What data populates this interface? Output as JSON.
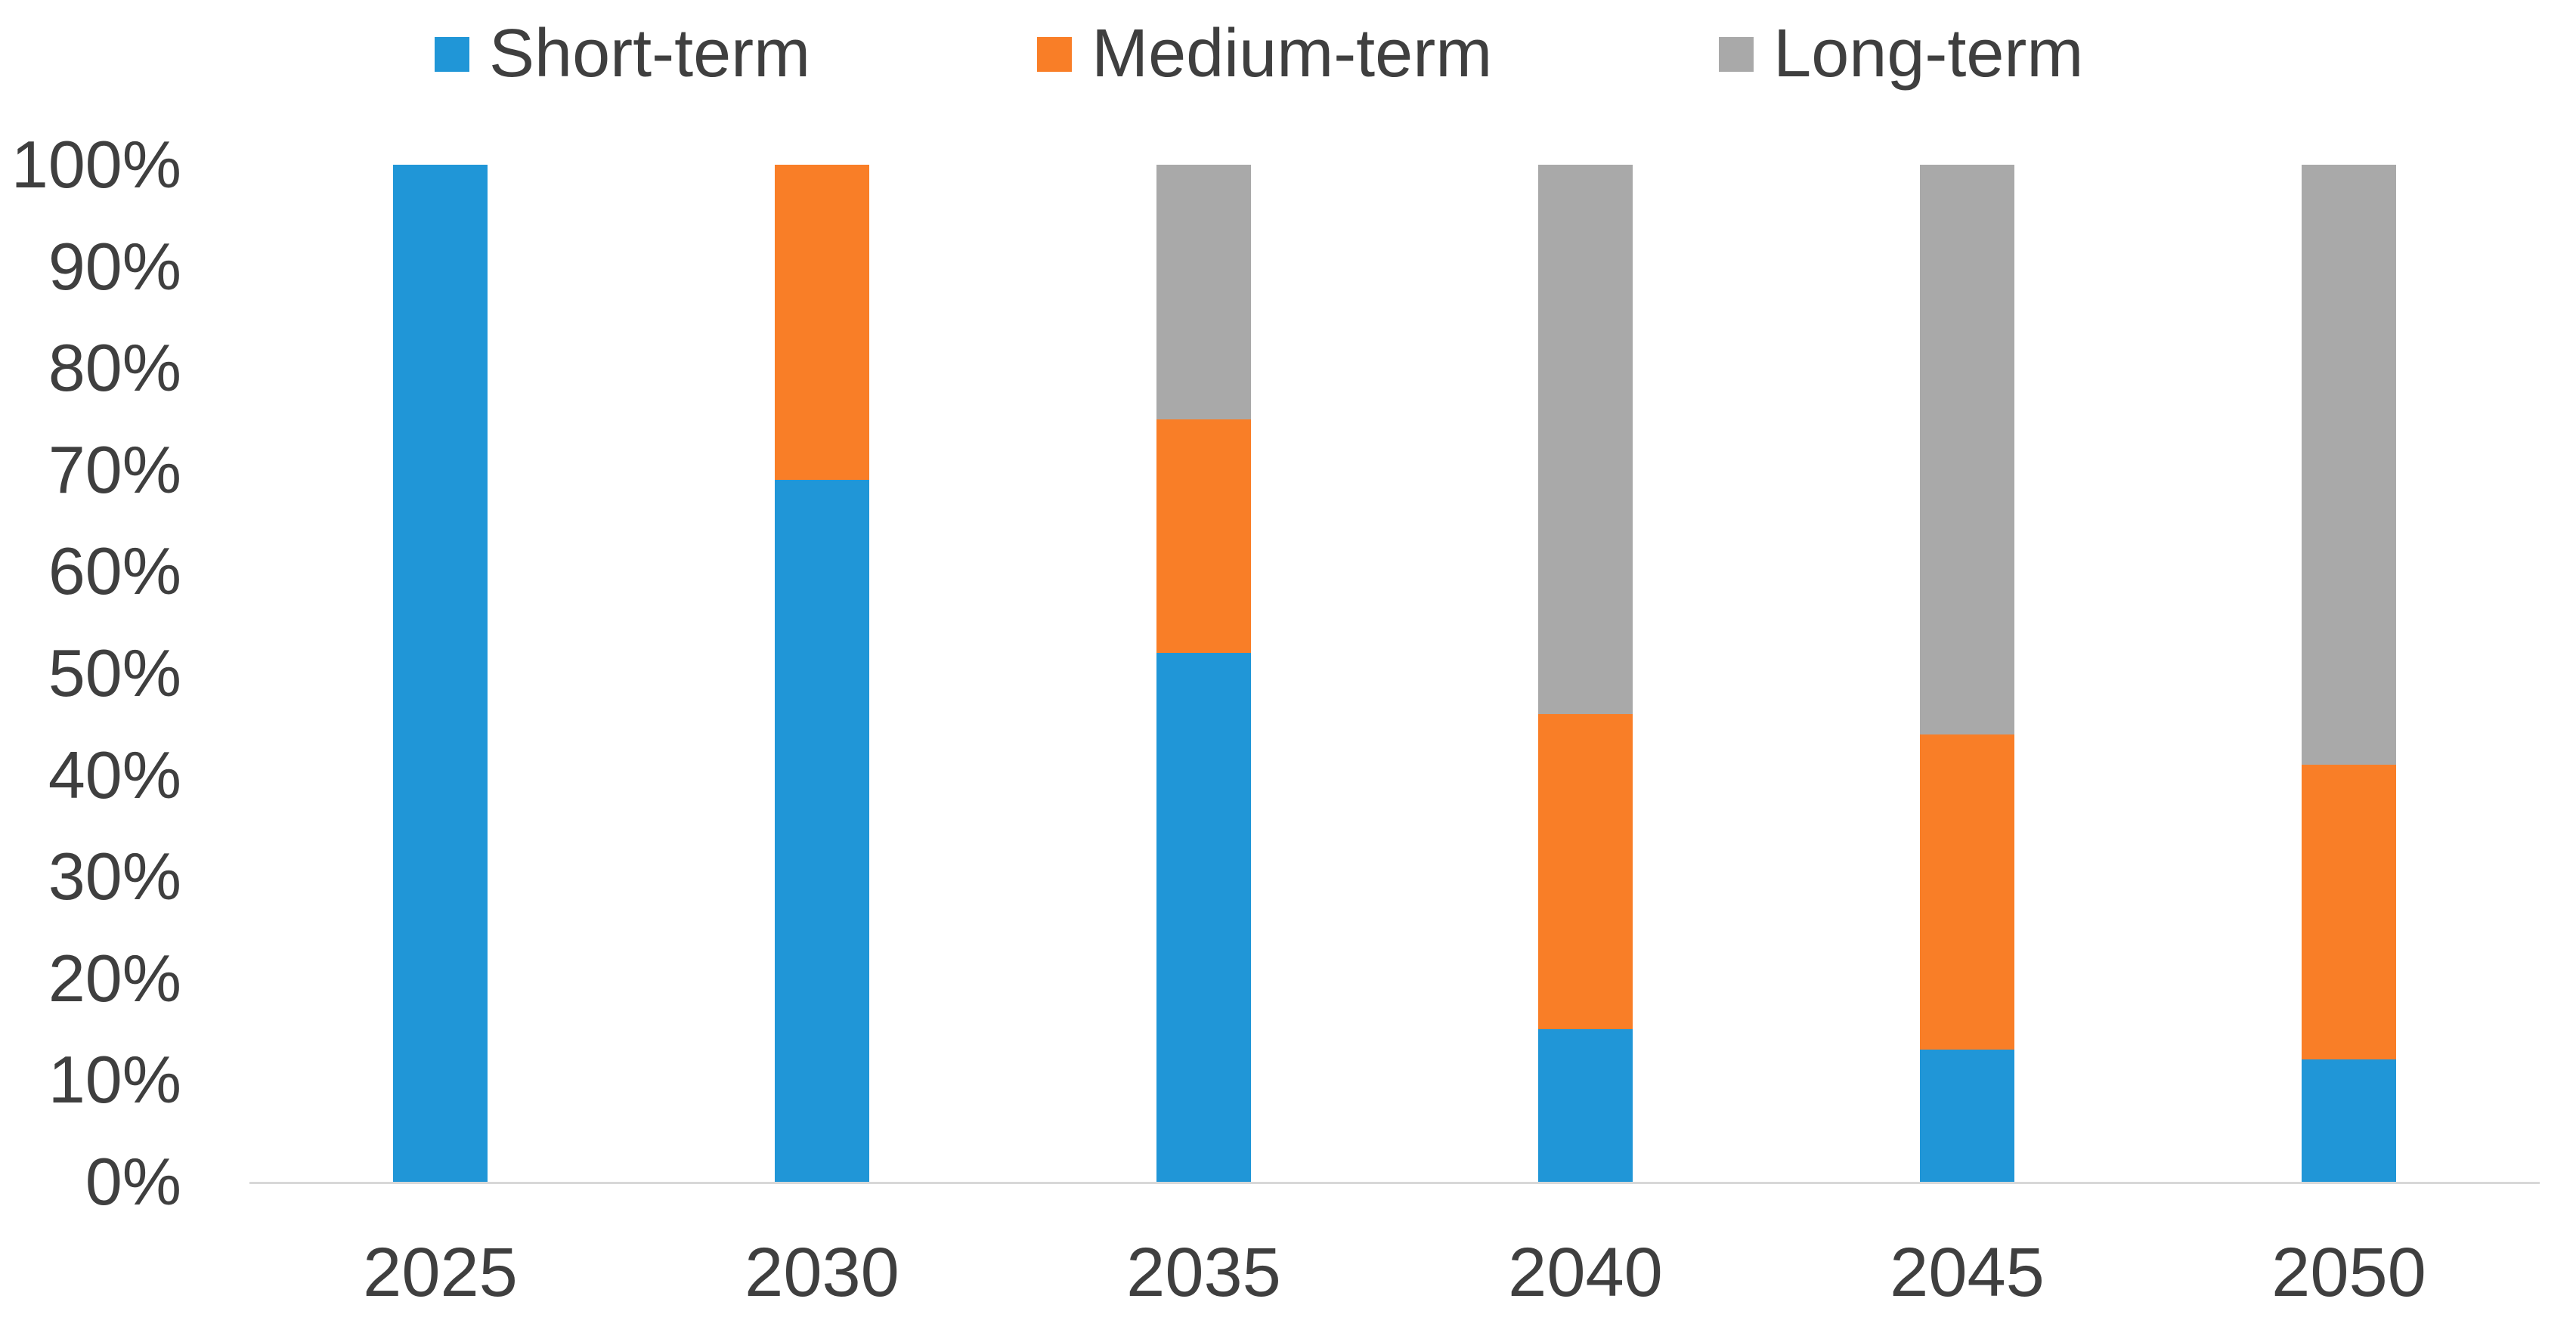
{
  "chart_data": {
    "type": "bar",
    "stacked": true,
    "stacking": "percent",
    "title": "",
    "xlabel": "",
    "ylabel": "",
    "categories": [
      "2025",
      "2030",
      "2035",
      "2040",
      "2045",
      "2050"
    ],
    "series": [
      {
        "name": "Short-term",
        "color": "#2096d7",
        "values": [
          100,
          69,
          52,
          15,
          13,
          12
        ]
      },
      {
        "name": "Medium-term",
        "color": "#f97e27",
        "values": [
          0,
          31,
          23,
          31,
          31,
          29
        ]
      },
      {
        "name": "Long-term",
        "color": "#a9a9a9",
        "values": [
          0,
          0,
          25,
          54,
          56,
          59
        ]
      }
    ],
    "ylim": [
      0,
      100
    ],
    "yticks": [
      "0%",
      "10%",
      "20%",
      "30%",
      "40%",
      "50%",
      "60%",
      "70%",
      "80%",
      "90%",
      "100%"
    ],
    "grid": false,
    "legend_position": "top",
    "axis_line_color": "#d8d8d8",
    "text_color": "#3f3f3f"
  }
}
